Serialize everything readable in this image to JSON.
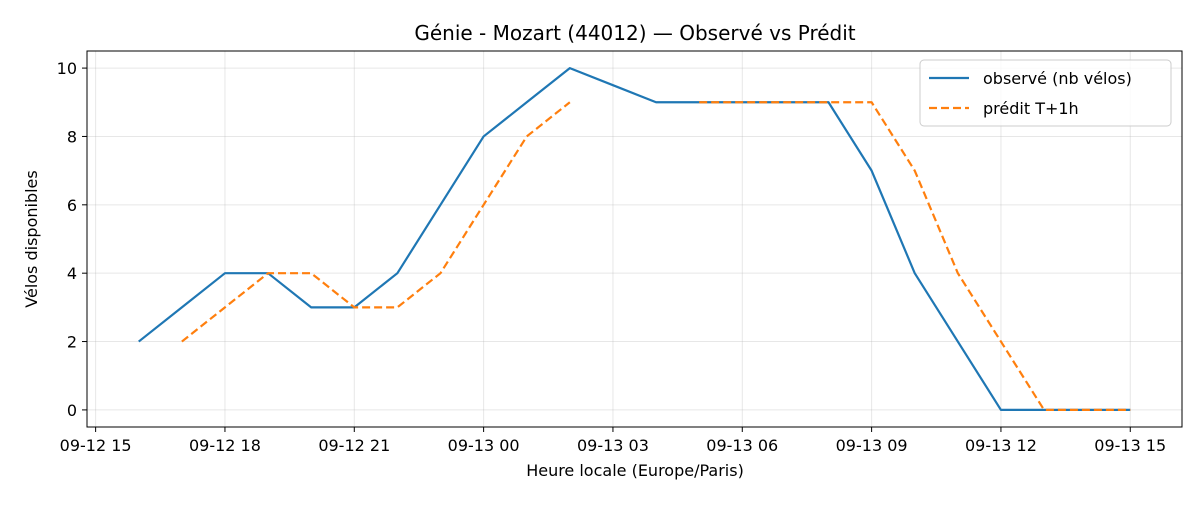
{
  "chart_data": {
    "type": "line",
    "title": "Génie - Mozart (44012) — Observé vs Prédit",
    "xlabel": "Heure locale (Europe/Paris)",
    "ylabel": "Vélos disponibles",
    "xlim": [
      "2025-09-12T14:48",
      "2025-09-13T16:12"
    ],
    "ylim": [
      -0.5,
      10.5
    ],
    "x_ticks": [
      {
        "t": "2025-09-12T15:00",
        "label": "09-12 15"
      },
      {
        "t": "2025-09-12T18:00",
        "label": "09-12 18"
      },
      {
        "t": "2025-09-12T21:00",
        "label": "09-12 21"
      },
      {
        "t": "2025-09-13T00:00",
        "label": "09-13 00"
      },
      {
        "t": "2025-09-13T03:00",
        "label": "09-13 03"
      },
      {
        "t": "2025-09-13T06:00",
        "label": "09-13 06"
      },
      {
        "t": "2025-09-13T09:00",
        "label": "09-13 09"
      },
      {
        "t": "2025-09-13T12:00",
        "label": "09-13 12"
      },
      {
        "t": "2025-09-13T15:00",
        "label": "09-13 15"
      }
    ],
    "y_ticks": [
      {
        "v": 0,
        "label": "0"
      },
      {
        "v": 2,
        "label": "2"
      },
      {
        "v": 4,
        "label": "4"
      },
      {
        "v": 6,
        "label": "6"
      },
      {
        "v": 8,
        "label": "8"
      },
      {
        "v": 10,
        "label": "10"
      }
    ],
    "grid": true,
    "legend_position": "top-right",
    "series": [
      {
        "name": "observé (nb vélos)",
        "color": "#1f77b4",
        "style": "solid",
        "points": [
          {
            "t": "2025-09-12T16:00",
            "v": 2
          },
          {
            "t": "2025-09-12T17:00",
            "v": 3
          },
          {
            "t": "2025-09-12T18:00",
            "v": 4
          },
          {
            "t": "2025-09-12T19:00",
            "v": 4
          },
          {
            "t": "2025-09-12T20:00",
            "v": 3
          },
          {
            "t": "2025-09-12T21:00",
            "v": 3
          },
          {
            "t": "2025-09-12T22:00",
            "v": 4
          },
          {
            "t": "2025-09-12T23:00",
            "v": 6
          },
          {
            "t": "2025-09-13T00:00",
            "v": 8
          },
          {
            "t": "2025-09-13T01:00",
            "v": 9
          },
          {
            "t": "2025-09-13T02:00",
            "v": 10
          },
          {
            "t": "2025-09-13T03:00",
            "v": 9.5
          },
          {
            "t": "2025-09-13T04:00",
            "v": 9
          },
          {
            "t": "2025-09-13T05:00",
            "v": 9
          },
          {
            "t": "2025-09-13T06:00",
            "v": 9
          },
          {
            "t": "2025-09-13T07:00",
            "v": 9
          },
          {
            "t": "2025-09-13T08:00",
            "v": 9
          },
          {
            "t": "2025-09-13T09:00",
            "v": 7
          },
          {
            "t": "2025-09-13T10:00",
            "v": 4
          },
          {
            "t": "2025-09-13T11:00",
            "v": 2
          },
          {
            "t": "2025-09-13T12:00",
            "v": 0
          },
          {
            "t": "2025-09-13T13:00",
            "v": 0
          },
          {
            "t": "2025-09-13T14:00",
            "v": 0
          },
          {
            "t": "2025-09-13T15:00",
            "v": 0
          }
        ]
      },
      {
        "name": "prédit T+1h",
        "color": "#ff7f0e",
        "style": "dashed",
        "segments": [
          [
            {
              "t": "2025-09-12T17:00",
              "v": 2
            },
            {
              "t": "2025-09-12T18:00",
              "v": 3
            },
            {
              "t": "2025-09-12T19:00",
              "v": 4
            },
            {
              "t": "2025-09-12T20:00",
              "v": 4
            },
            {
              "t": "2025-09-12T21:00",
              "v": 3
            },
            {
              "t": "2025-09-12T22:00",
              "v": 3
            },
            {
              "t": "2025-09-12T23:00",
              "v": 4
            },
            {
              "t": "2025-09-13T00:00",
              "v": 6
            },
            {
              "t": "2025-09-13T01:00",
              "v": 8
            },
            {
              "t": "2025-09-13T02:00",
              "v": 9
            }
          ],
          [
            {
              "t": "2025-09-13T05:00",
              "v": 9
            },
            {
              "t": "2025-09-13T06:00",
              "v": 9
            },
            {
              "t": "2025-09-13T07:00",
              "v": 9
            },
            {
              "t": "2025-09-13T08:00",
              "v": 9
            },
            {
              "t": "2025-09-13T09:00",
              "v": 9
            },
            {
              "t": "2025-09-13T10:00",
              "v": 7
            },
            {
              "t": "2025-09-13T11:00",
              "v": 4
            },
            {
              "t": "2025-09-13T12:00",
              "v": 2
            },
            {
              "t": "2025-09-13T13:00",
              "v": 0
            },
            {
              "t": "2025-09-13T14:00",
              "v": 0
            },
            {
              "t": "2025-09-13T15:00",
              "v": 0
            }
          ]
        ]
      }
    ]
  }
}
